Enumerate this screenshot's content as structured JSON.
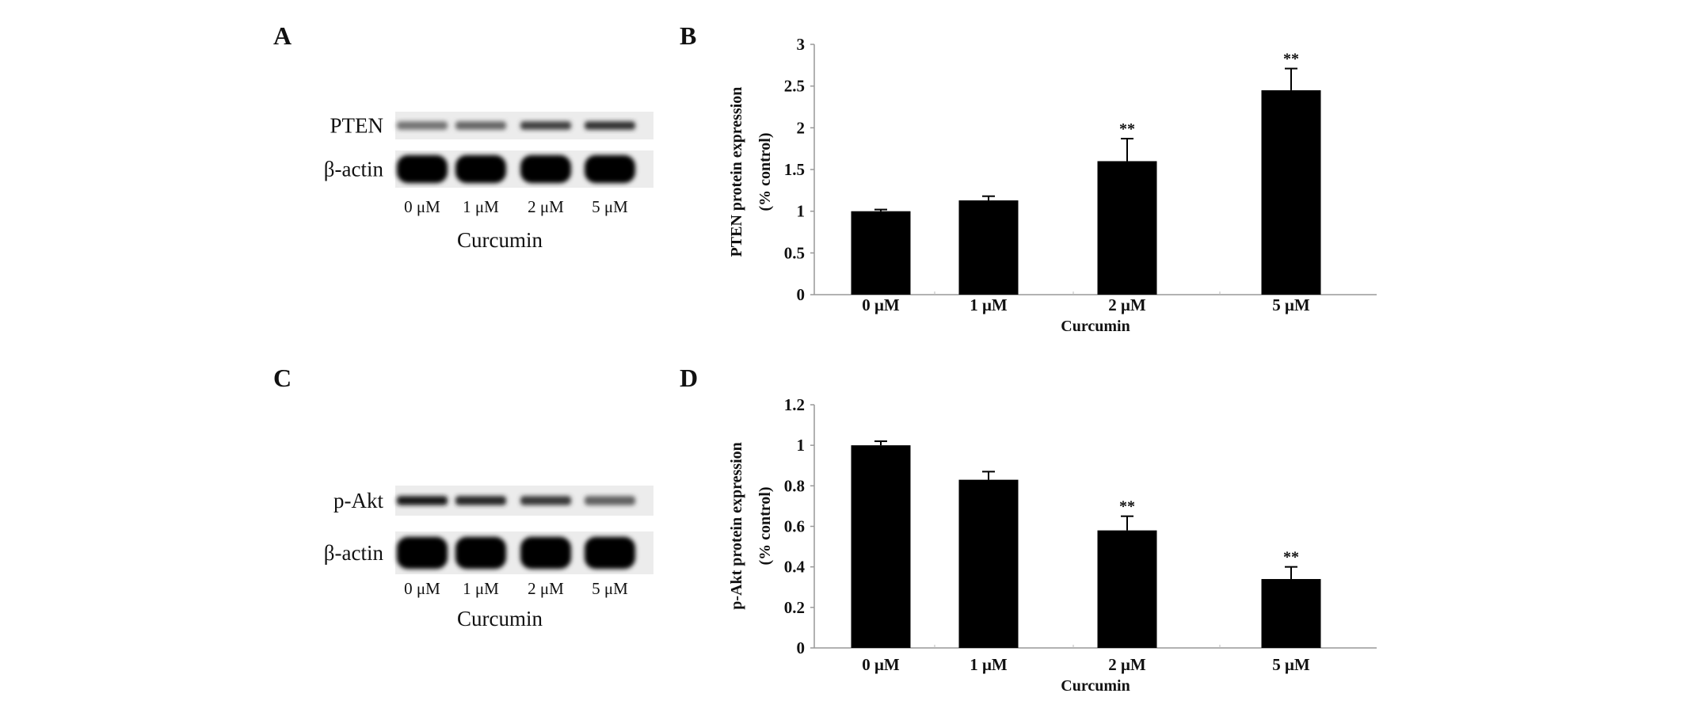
{
  "panels": {
    "a": "A",
    "b": "B",
    "c": "C",
    "d": "D"
  },
  "blots": [
    {
      "rows": [
        {
          "label": "PTEN",
          "intensity": [
            0.55,
            0.6,
            0.75,
            0.8
          ],
          "thick": false
        },
        {
          "label": "β-actin",
          "intensity": [
            1,
            1,
            1,
            1
          ],
          "thick": true
        }
      ],
      "lanes": [
        "0 μM",
        "1 μM",
        "2 μM",
        "5 μM"
      ],
      "xlabel": "Curcumin"
    },
    {
      "rows": [
        {
          "label": "p-Akt",
          "intensity": [
            0.9,
            0.85,
            0.78,
            0.62
          ],
          "thick": false
        },
        {
          "label": "β-actin",
          "intensity": [
            1,
            1,
            1,
            1
          ],
          "thick": true
        }
      ],
      "lanes": [
        "0 μM",
        "1 μM",
        "2 μM",
        "5 μM"
      ],
      "xlabel": "Curcumin"
    }
  ],
  "chart_data": [
    {
      "type": "bar",
      "categories": [
        "0 μM",
        "1  μM",
        "2 μM",
        "5 μM"
      ],
      "values": [
        1.0,
        1.13,
        1.6,
        2.45
      ],
      "errors": [
        0.02,
        0.05,
        0.27,
        0.26
      ],
      "significance": [
        "",
        "",
        "**",
        "**"
      ],
      "ylabel": [
        "PTEN protein expression",
        "(% control)"
      ],
      "xlabel": "Curcumin",
      "ylim": [
        0,
        3
      ],
      "yticks": [
        "0",
        "0.5",
        "1",
        "1.5",
        "2",
        "2.5",
        "3"
      ],
      "grid": false,
      "bar_color": "#000000"
    },
    {
      "type": "bar",
      "categories": [
        "0 μM",
        "1  μM",
        "2 μM",
        "5 μM"
      ],
      "values": [
        1.0,
        0.83,
        0.58,
        0.34
      ],
      "errors": [
        0.02,
        0.04,
        0.07,
        0.06
      ],
      "significance": [
        "",
        "",
        "**",
        "**"
      ],
      "ylabel": [
        "p-Akt protein expression",
        "(% control)"
      ],
      "xlabel": "Curcumin",
      "ylim": [
        0,
        1.2
      ],
      "yticks": [
        "0",
        "0.2",
        "0.4",
        "0.6",
        "0.8",
        "1",
        "1.2"
      ],
      "grid": false,
      "bar_color": "#000000"
    }
  ]
}
